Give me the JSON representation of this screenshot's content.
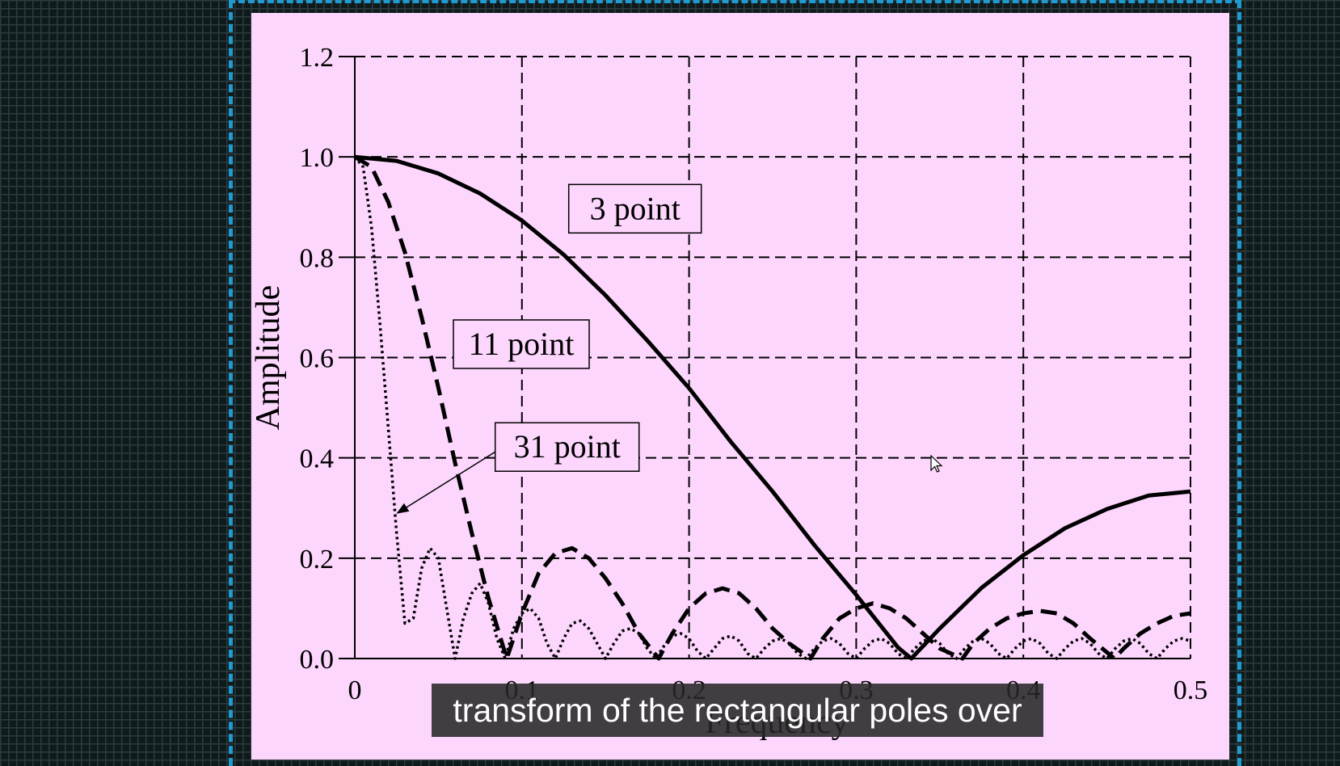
{
  "chart_data": {
    "type": "line",
    "xlabel": "Frequency",
    "ylabel": "Amplitude",
    "xlim": [
      0,
      0.5
    ],
    "ylim": [
      0,
      1.2
    ],
    "xticks": [
      "0",
      "0.1",
      "0.2",
      "0.3",
      "0.4",
      "0.5"
    ],
    "yticks": [
      "0.0",
      "0.2",
      "0.4",
      "0.6",
      "0.8",
      "1.0",
      "1.2"
    ],
    "grid": true,
    "series": [
      {
        "name": "3 point",
        "style": "solid",
        "color": "#000000",
        "x": [
          0,
          0.025,
          0.05,
          0.075,
          0.1,
          0.125,
          0.15,
          0.175,
          0.2,
          0.225,
          0.25,
          0.275,
          0.3,
          0.325,
          0.333,
          0.35,
          0.375,
          0.4,
          0.425,
          0.45,
          0.475,
          0.5
        ],
        "y": [
          1.0,
          0.992,
          0.967,
          0.927,
          0.873,
          0.805,
          0.724,
          0.634,
          0.539,
          0.432,
          0.333,
          0.226,
          0.127,
          0.022,
          0.0,
          0.06,
          0.141,
          0.206,
          0.26,
          0.298,
          0.325,
          0.333
        ]
      },
      {
        "name": "11 point",
        "style": "dashed",
        "color": "#000000",
        "x": [
          0,
          0.01,
          0.02,
          0.03,
          0.04,
          0.05,
          0.06,
          0.07,
          0.08,
          0.0909,
          0.1,
          0.11,
          0.12,
          0.13,
          0.14,
          0.15,
          0.16,
          0.17,
          0.1818,
          0.19,
          0.2,
          0.21,
          0.22,
          0.23,
          0.24,
          0.25,
          0.26,
          0.2727,
          0.28,
          0.29,
          0.3,
          0.31,
          0.32,
          0.33,
          0.34,
          0.35,
          0.3636,
          0.37,
          0.38,
          0.39,
          0.4,
          0.41,
          0.42,
          0.43,
          0.44,
          0.4545,
          0.46,
          0.47,
          0.48,
          0.49,
          0.5
        ],
        "y": [
          1.0,
          0.98,
          0.91,
          0.81,
          0.68,
          0.54,
          0.39,
          0.25,
          0.12,
          0.0,
          0.09,
          0.17,
          0.21,
          0.22,
          0.2,
          0.16,
          0.11,
          0.05,
          0.0,
          0.05,
          0.1,
          0.13,
          0.14,
          0.13,
          0.1,
          0.06,
          0.03,
          0.0,
          0.04,
          0.08,
          0.1,
          0.11,
          0.1,
          0.08,
          0.05,
          0.02,
          0.0,
          0.03,
          0.06,
          0.08,
          0.09,
          0.095,
          0.09,
          0.07,
          0.04,
          0.0,
          0.02,
          0.05,
          0.07,
          0.085,
          0.09
        ]
      },
      {
        "name": "31 point",
        "style": "dotted",
        "color": "#000000",
        "x": [
          0,
          0.005,
          0.01,
          0.015,
          0.02,
          0.025,
          0.03,
          0.035,
          0.04,
          0.045,
          0.05,
          0.055,
          0.06,
          0.065,
          0.07,
          0.075,
          0.08,
          0.085,
          0.09,
          0.095,
          0.1,
          0.105,
          0.11,
          0.115,
          0.12,
          0.125,
          0.13,
          0.135,
          0.14,
          0.145,
          0.15,
          0.155,
          0.16,
          0.165,
          0.17,
          0.175,
          0.18,
          0.185,
          0.19,
          0.195,
          0.2,
          0.205,
          0.21,
          0.215,
          0.22,
          0.225,
          0.23,
          0.235,
          0.24,
          0.245,
          0.25,
          0.255,
          0.26,
          0.265,
          0.27,
          0.275,
          0.28,
          0.285,
          0.29,
          0.295,
          0.3,
          0.305,
          0.31,
          0.315,
          0.32,
          0.325,
          0.33,
          0.335,
          0.34,
          0.345,
          0.35,
          0.355,
          0.36,
          0.365,
          0.37,
          0.375,
          0.38,
          0.385,
          0.39,
          0.395,
          0.4,
          0.405,
          0.41,
          0.415,
          0.42,
          0.425,
          0.43,
          0.435,
          0.44,
          0.445,
          0.45,
          0.455,
          0.46,
          0.465,
          0.47,
          0.475,
          0.48,
          0.485,
          0.49,
          0.495,
          0.5
        ],
        "y": [
          1.0,
          0.98,
          0.86,
          0.67,
          0.46,
          0.25,
          0.07,
          0.08,
          0.18,
          0.22,
          0.2,
          0.1,
          0.0,
          0.08,
          0.13,
          0.15,
          0.11,
          0.04,
          0.0,
          0.06,
          0.09,
          0.1,
          0.08,
          0.03,
          0.0,
          0.04,
          0.07,
          0.075,
          0.06,
          0.03,
          0.0,
          0.03,
          0.055,
          0.06,
          0.05,
          0.02,
          0.0,
          0.025,
          0.045,
          0.05,
          0.04,
          0.015,
          0.0,
          0.02,
          0.04,
          0.045,
          0.035,
          0.01,
          0.0,
          0.02,
          0.035,
          0.04,
          0.03,
          0.01,
          0.0,
          0.02,
          0.035,
          0.04,
          0.03,
          0.01,
          0.0,
          0.02,
          0.035,
          0.04,
          0.03,
          0.01,
          0.0,
          0.02,
          0.035,
          0.04,
          0.03,
          0.01,
          0.0,
          0.02,
          0.035,
          0.04,
          0.03,
          0.01,
          0.0,
          0.02,
          0.035,
          0.04,
          0.03,
          0.01,
          0.0,
          0.02,
          0.035,
          0.04,
          0.03,
          0.01,
          0.0,
          0.02,
          0.035,
          0.04,
          0.03,
          0.01,
          0.0,
          0.02,
          0.035,
          0.04,
          0.035
        ]
      }
    ],
    "annotations": [
      {
        "text": "3 point",
        "series": "3 point"
      },
      {
        "text": "11 point",
        "series": "11 point"
      },
      {
        "text": "31 point",
        "series": "31 point",
        "arrow": true
      }
    ]
  },
  "caption": {
    "text": "transform of the rectangular poles over"
  },
  "cursor_icon": "mouse-pointer-icon",
  "colors": {
    "panel": "#fdd6fd",
    "guides": "#1f9bd1",
    "caption_bg": "#282828"
  }
}
